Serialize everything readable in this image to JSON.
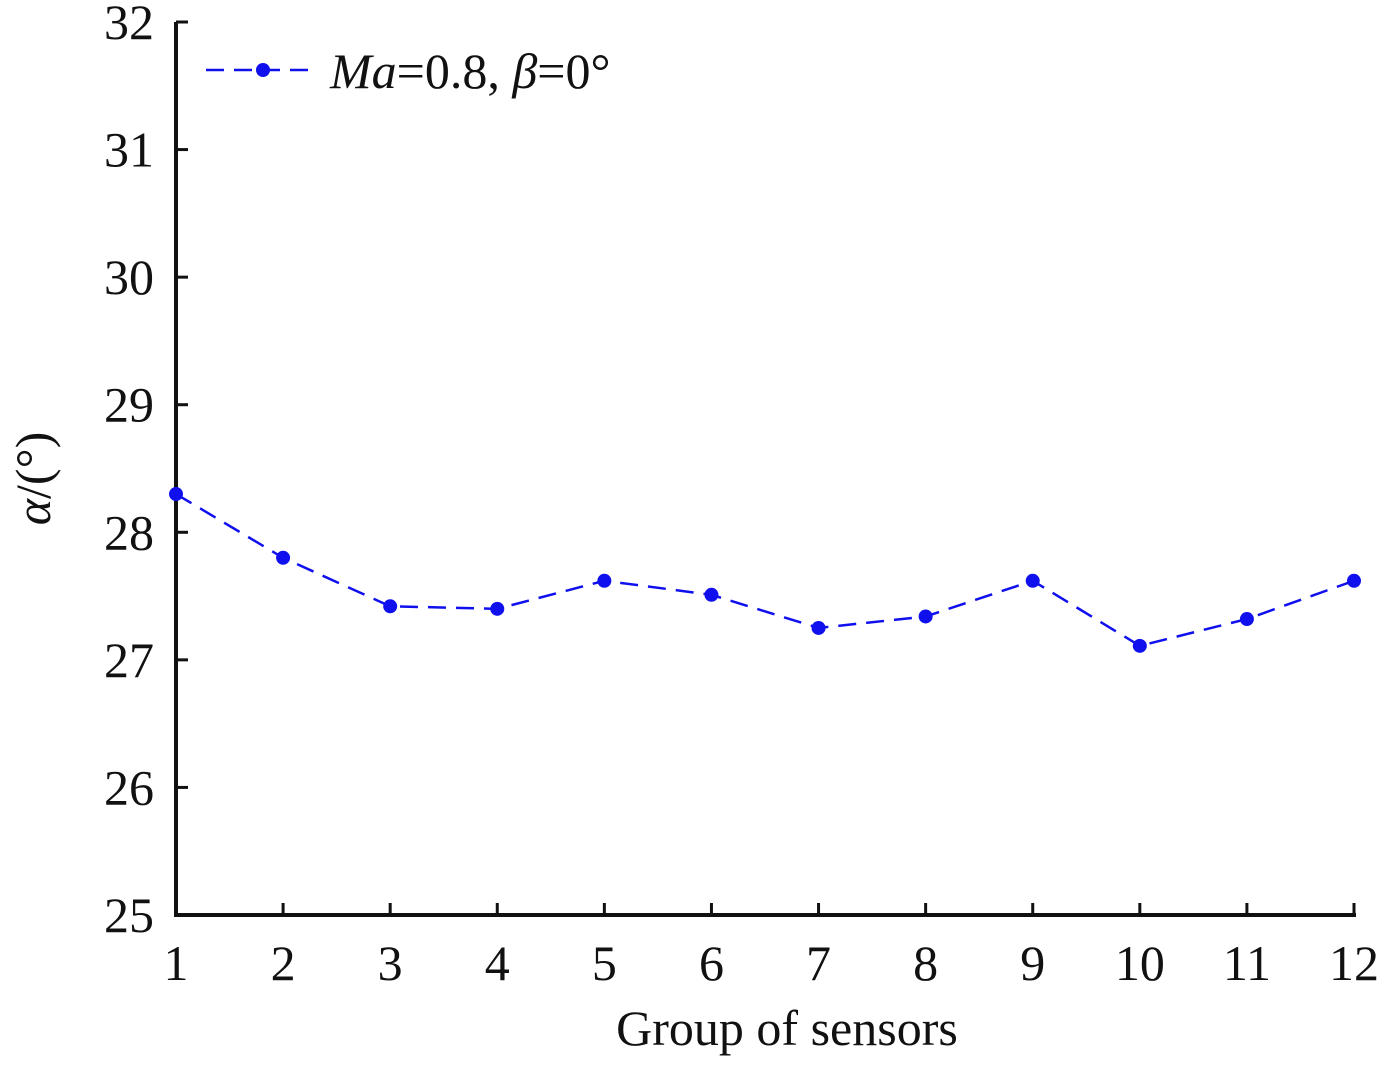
{
  "chart_data": {
    "type": "line",
    "title": "",
    "xlabel": "Group of sensors",
    "ylabel": "α/(°)",
    "ylabel_parts": {
      "symbol": "α",
      "rest": "/(°)"
    },
    "categories": [
      "1",
      "2",
      "3",
      "4",
      "5",
      "6",
      "7",
      "8",
      "9",
      "10",
      "11",
      "12"
    ],
    "x": [
      1,
      2,
      3,
      4,
      5,
      6,
      7,
      8,
      9,
      10,
      11,
      12
    ],
    "xlim": [
      1,
      12
    ],
    "ylim": [
      25,
      32
    ],
    "yticks": [
      "25",
      "26",
      "27",
      "28",
      "29",
      "30",
      "31",
      "32"
    ],
    "grid": false,
    "legend_position": "top-left",
    "series": [
      {
        "name": "Ma=0.8, β=0°",
        "name_parts": [
          {
            "text": "Ma",
            "italic": true
          },
          {
            "text": "=0.8, ",
            "italic": false
          },
          {
            "text": "β",
            "italic": true
          },
          {
            "text": "=0°",
            "italic": false
          }
        ],
        "color": "#1010ee",
        "line_style": "dashed",
        "marker": "circle",
        "values": [
          28.3,
          27.8,
          27.42,
          27.4,
          27.62,
          27.51,
          27.25,
          27.34,
          27.62,
          27.11,
          27.32,
          27.62
        ]
      }
    ]
  }
}
